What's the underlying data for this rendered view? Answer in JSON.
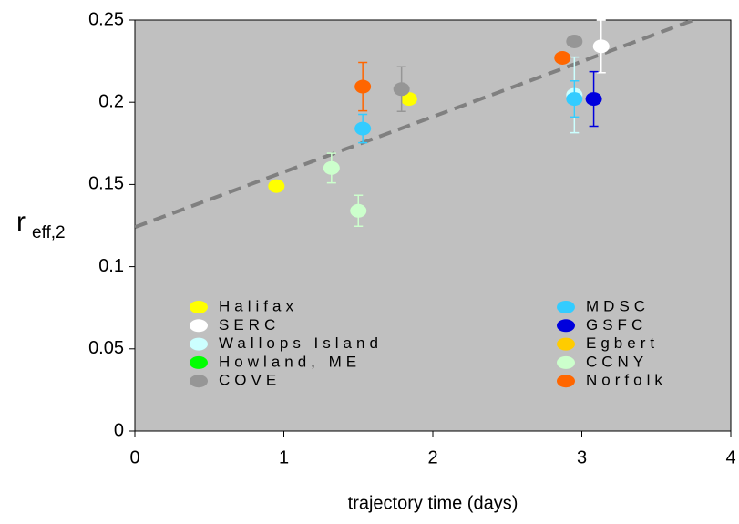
{
  "chart_data": {
    "type": "scatter",
    "xlabel": "trajectory time (days)",
    "ylabel": "r",
    "ylabel_sub": "eff,2",
    "xlim": [
      0,
      4
    ],
    "xticks": [
      0,
      1,
      2,
      3,
      4
    ],
    "ylim": [
      0,
      0.25
    ],
    "yticks": [
      0,
      0.05,
      0.1,
      0.15,
      0.2,
      0.25
    ],
    "background": "#c0c0c0",
    "trendline": {
      "color": "#808080",
      "x": [
        0,
        3.75
      ],
      "y": [
        0.124,
        0.25
      ]
    },
    "series": [
      {
        "name": "Halifax",
        "color": "#ffff00",
        "x": [
          0.95,
          1.84
        ],
        "values": [
          0.149,
          0.202
        ],
        "errors": [
          null,
          null
        ]
      },
      {
        "name": "SERC",
        "color": "#ffffff",
        "x": [
          3.13
        ],
        "values": [
          0.234
        ],
        "errors": [
          0.016
        ]
      },
      {
        "name": "Wallops Island",
        "color": "#ccffff",
        "x": [
          2.95
        ],
        "values": [
          0.2045
        ],
        "errors": [
          0.023
        ]
      },
      {
        "name": "Howland, ME",
        "color": "#00ff00",
        "x": [],
        "values": [],
        "errors": []
      },
      {
        "name": "COVE",
        "color": "#969696",
        "x": [
          1.79,
          2.95
        ],
        "values": [
          0.208,
          0.237
        ],
        "errors": [
          0.0136,
          null
        ]
      },
      {
        "name": "MDSC",
        "color": "#33ccff",
        "x": [
          1.53,
          2.95
        ],
        "values": [
          0.184,
          0.202
        ],
        "errors": [
          0.0086,
          0.011
        ]
      },
      {
        "name": "GSFC",
        "color": "#0000dd",
        "x": [
          3.08
        ],
        "values": [
          0.202
        ],
        "errors": [
          0.0166
        ]
      },
      {
        "name": "Egbert",
        "color": "#ffcc00",
        "x": [],
        "values": [],
        "errors": []
      },
      {
        "name": "CCNY",
        "color": "#ccffcc",
        "x": [
          1.32,
          1.5
        ],
        "values": [
          0.16,
          0.134
        ],
        "errors": [
          0.009,
          0.0094
        ]
      },
      {
        "name": "Norfolk",
        "color": "#ff6600",
        "x": [
          1.53,
          2.87
        ],
        "values": [
          0.2095,
          0.227
        ],
        "errors": [
          0.0147,
          null
        ]
      }
    ]
  }
}
